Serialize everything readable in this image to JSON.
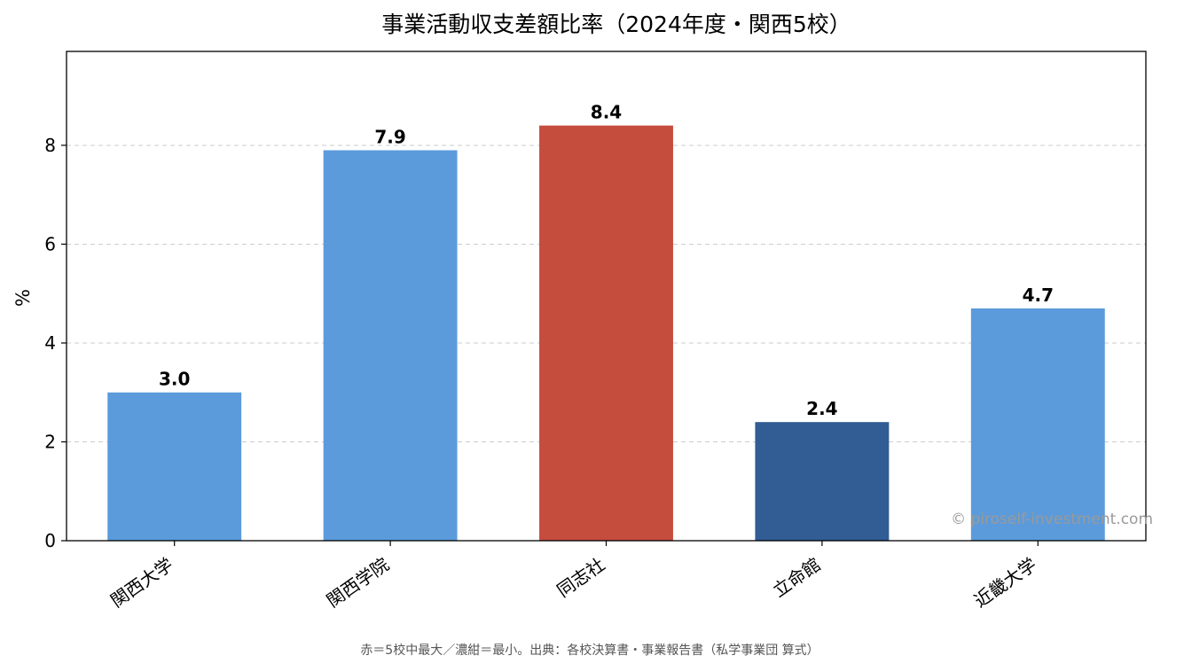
{
  "chart_data": {
    "type": "bar",
    "title": "事業活動収支差額比率（2024年度・関西5校）",
    "ylabel": "%",
    "xlabel": "",
    "ylim": [
      0,
      9.9
    ],
    "yticks": [
      "0",
      "2",
      "4",
      "6",
      "8"
    ],
    "grid": "y-dashed",
    "categories": [
      "関西大学",
      "関西学院",
      "同志社",
      "立命館",
      "近畿大学"
    ],
    "values": [
      3.0,
      7.9,
      8.4,
      2.4,
      4.7
    ],
    "value_labels": [
      "3.0",
      "7.9",
      "8.4",
      "2.4",
      "4.7"
    ],
    "colors": [
      "#5b9bdb",
      "#5b9bdb",
      "#c44d3e",
      "#315c94",
      "#5b9bdb"
    ],
    "highlight": {
      "max_color": "#c44d3e",
      "min_color": "#315c94",
      "default_color": "#5b9bdb"
    },
    "watermark": "© piroself-investment.com",
    "footnote": "赤＝5校中最大／濃紺＝最小。出典：各校決算書・事業報告書（私学事業団 算式）"
  }
}
